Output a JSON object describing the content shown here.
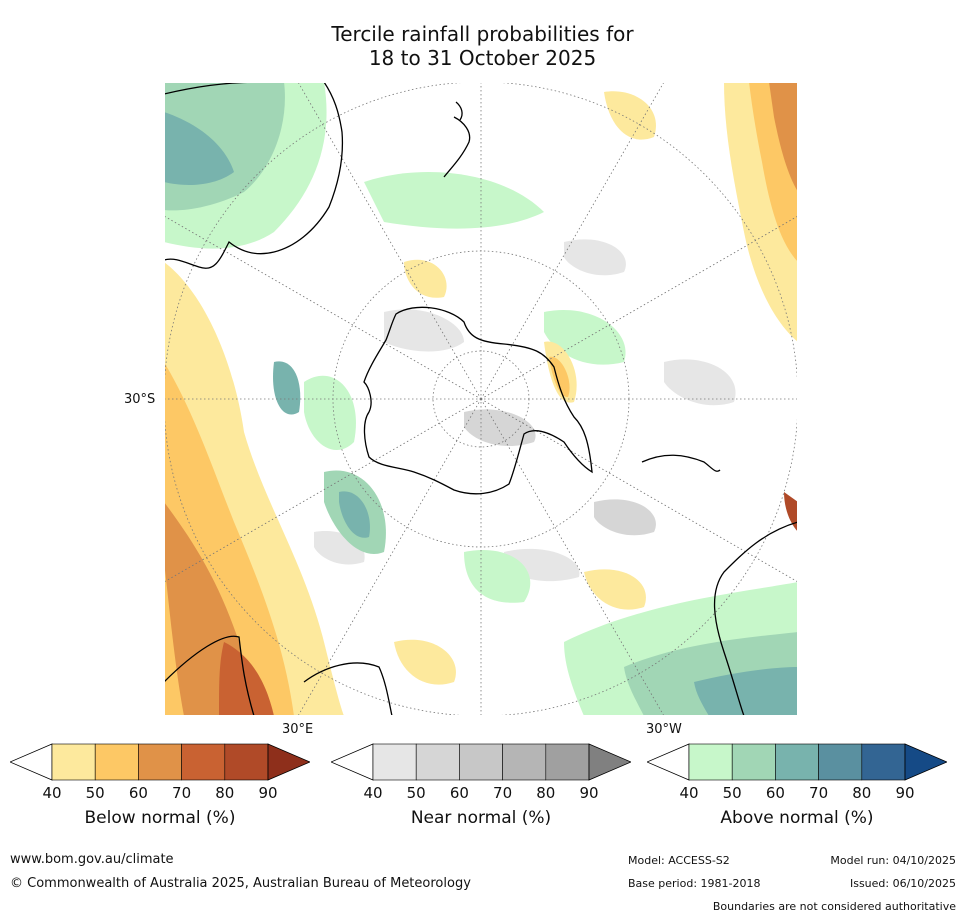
{
  "title": {
    "line1": "Tercile rainfall probabilities for",
    "line2": "18 to 31 October 2025"
  },
  "map": {
    "projection": "south-polar-stereographic",
    "lat_labels": {
      "west_30S": "30°S",
      "south_30E": "30°E",
      "south_30W": "30°W"
    }
  },
  "colorbars": [
    {
      "id": "below",
      "title": "Below normal (%)",
      "ticks": [
        "40",
        "50",
        "60",
        "70",
        "80",
        "90"
      ],
      "colors": [
        "#ffffff",
        "#fde99d",
        "#fdc865",
        "#e09248",
        "#c96232",
        "#b04a28",
        "#8e2f1b"
      ]
    },
    {
      "id": "near",
      "title": "Near normal (%)",
      "ticks": [
        "40",
        "50",
        "60",
        "70",
        "80",
        "90"
      ],
      "colors": [
        "#ffffff",
        "#e6e6e6",
        "#d6d6d6",
        "#c7c7c7",
        "#b5b5b5",
        "#a0a0a0",
        "#808080"
      ]
    },
    {
      "id": "above",
      "title": "Above normal (%)",
      "ticks": [
        "40",
        "50",
        "60",
        "70",
        "80",
        "90"
      ],
      "colors": [
        "#ffffff",
        "#c7f7ca",
        "#a1d6b5",
        "#78b3ad",
        "#5a90a0",
        "#336593",
        "#154a86"
      ]
    }
  ],
  "footer": {
    "website": "www.bom.gov.au/climate",
    "copyright": "© Commonwealth of Australia 2025, Australian Bureau of Meteorology",
    "model": "Model: ACCESS-S2",
    "model_run": "Model run: 04/10/2025",
    "base_period": "Base period: 1981-2018",
    "issued": "Issued: 06/10/2025",
    "disclaimer": "Boundaries are not considered authoritative"
  }
}
